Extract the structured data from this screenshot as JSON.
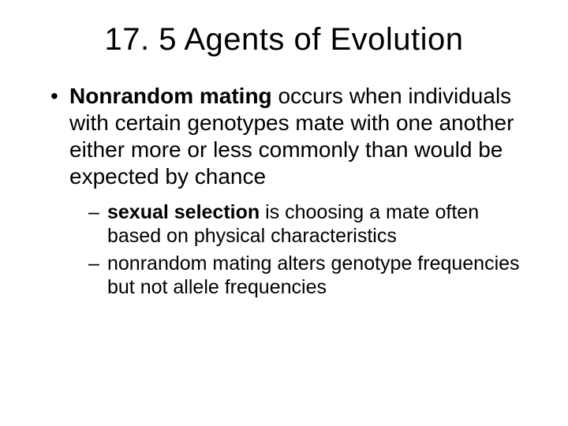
{
  "title": "17. 5 Agents of Evolution",
  "bullet1": {
    "bold": "Nonrandom mating",
    "rest": " occurs when individuals with certain genotypes mate with one another either more or less commonly than would be expected by chance"
  },
  "sub1": {
    "bold": "sexual selection",
    "rest": " is choosing a mate often based on physical characteristics"
  },
  "sub2": {
    "text": "nonrandom mating alters genotype frequencies but not allele frequencies"
  }
}
